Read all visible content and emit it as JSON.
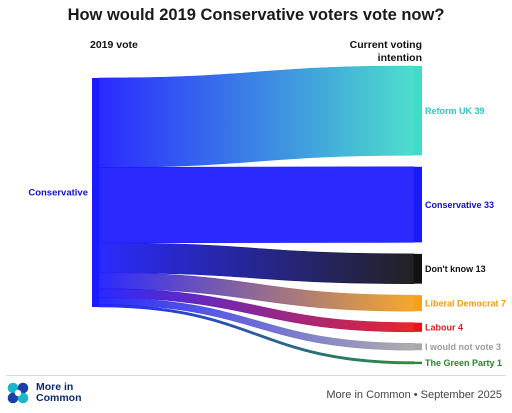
{
  "chart_data": {
    "type": "sankey",
    "title": "How would 2019 Conservative voters vote now?",
    "left_header": "2019 vote",
    "right_header": "Current voting intention",
    "source": {
      "name": "Conservative",
      "color": "#1a1aff"
    },
    "targets": [
      {
        "label": "Reform UK 39",
        "name": "Reform UK",
        "value": 39,
        "color": "#3fdcc8",
        "label_color": "#2ec7c0"
      },
      {
        "label": "Conservative 33",
        "name": "Conservative",
        "value": 33,
        "color": "#1a1aff",
        "label_color": "#1010cc"
      },
      {
        "label": "Don't know 13",
        "name": "Don't know",
        "value": 13,
        "color": "#111111",
        "label_color": "#111111"
      },
      {
        "label": "Liberal Democrat 7",
        "name": "Liberal Democrat",
        "value": 7,
        "color": "#f5a21b",
        "label_color": "#f39c12"
      },
      {
        "label": "Labour 4",
        "name": "Labour",
        "value": 4,
        "color": "#e8141c",
        "label_color": "#e31b1b"
      },
      {
        "label": "I would not vote 3",
        "name": "I would not vote",
        "value": 3,
        "color": "#a8a8a8",
        "label_color": "#9b9b9b"
      },
      {
        "label": "The Green Party 1",
        "name": "The Green Party",
        "value": 1,
        "color": "#1f8a2e",
        "label_color": "#1f8a2e"
      }
    ]
  },
  "footer": {
    "logo_text": "More in Common",
    "credit": "More in Common • September 2025"
  }
}
